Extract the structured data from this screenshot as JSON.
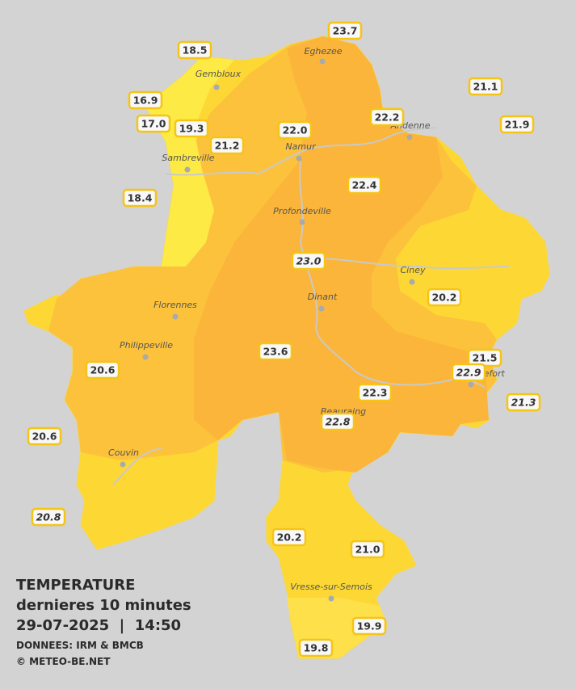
{
  "map": {
    "cities": [
      "Eghezee",
      "Gembloux",
      "Andenne",
      "Namur",
      "Sambreville",
      "Profondeville",
      "Ciney",
      "Dinant",
      "Florennes",
      "Philippeville",
      "Couvin",
      "Vresse-sur-Semois",
      "Rochefort",
      "Beauraing"
    ],
    "stations": [
      {
        "text": "23.7",
        "italic": false
      },
      {
        "text": "18.5",
        "italic": false
      },
      {
        "text": "21.1",
        "italic": false
      },
      {
        "text": "16.9",
        "italic": false
      },
      {
        "text": "22.2",
        "italic": false
      },
      {
        "text": "17.0",
        "italic": false
      },
      {
        "text": "19.3",
        "italic": false
      },
      {
        "text": "22.0",
        "italic": false
      },
      {
        "text": "21.9",
        "italic": false
      },
      {
        "text": "21.2",
        "italic": false
      },
      {
        "text": "22.4",
        "italic": false
      },
      {
        "text": "18.4",
        "italic": false
      },
      {
        "text": "23.0",
        "italic": true
      },
      {
        "text": "20.2",
        "italic": false
      },
      {
        "text": "23.6",
        "italic": false
      },
      {
        "text": "21.5",
        "italic": false
      },
      {
        "text": "22.9",
        "italic": true
      },
      {
        "text": "20.6",
        "italic": false
      },
      {
        "text": "22.3",
        "italic": false
      },
      {
        "text": "21.3",
        "italic": true
      },
      {
        "text": "22.8",
        "italic": true
      },
      {
        "text": "20.6",
        "italic": false
      },
      {
        "text": "20.8",
        "italic": true
      },
      {
        "text": "20.2",
        "italic": false
      },
      {
        "text": "21.0",
        "italic": false
      },
      {
        "text": "19.9",
        "italic": false
      },
      {
        "text": "19.8",
        "italic": false
      }
    ]
  },
  "footer": {
    "title": "TEMPERATURE",
    "subtitle": "dernieres 10 minutes",
    "datetime": "29-07-2025  |  14:50",
    "source": "DONNEES: IRM & BMCB",
    "copyright": "© METEO-BE.NET"
  }
}
